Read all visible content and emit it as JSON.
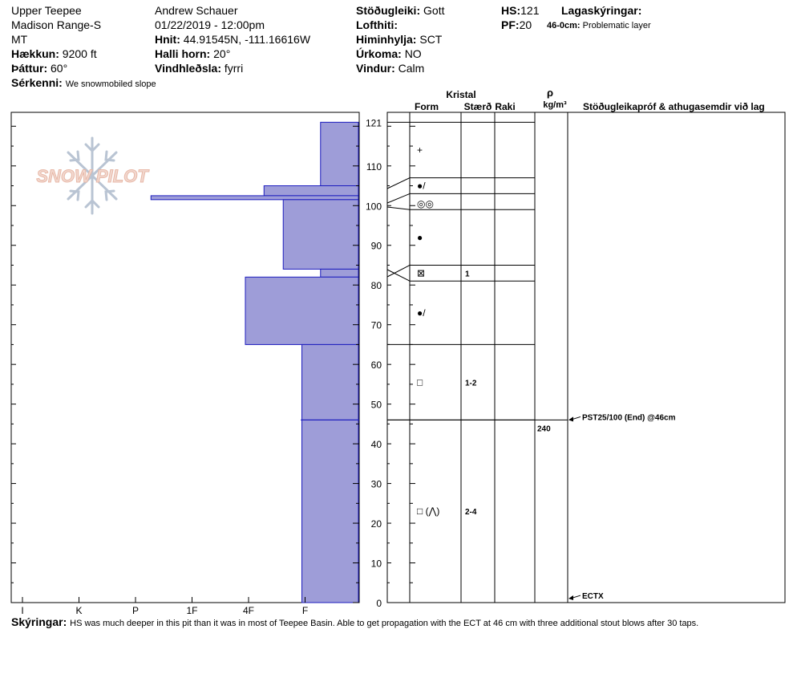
{
  "header": {
    "site_name": "Upper Teepee",
    "range": "Madison Range-S",
    "state": "MT",
    "elevation_label": "Hækkun:",
    "elevation_value": "9200 ft",
    "aspect_label": "Þáttur:",
    "aspect_value": "60°",
    "features_label": "Sérkenni:",
    "features_value": "We snowmobiled slope",
    "observer": "Andrew Schauer",
    "datetime": "01/22/2019 - 12:00pm",
    "coords_label": "Hnit:",
    "coords_value": "44.91545N, -111.16616W",
    "slope_label": "Halli horn:",
    "slope_value": "20°",
    "wind_loading_label": "Vindhleðsla:",
    "wind_loading_value": "fyrri",
    "stability_label": "Stöðugleiki:",
    "stability_value": "Gott",
    "air_temp_label": "Lofthiti:",
    "air_temp_value": "",
    "sky_label": "Himinhylja:",
    "sky_value": "SCT",
    "precip_label": "Úrkoma:",
    "precip_value": "NO",
    "wind_label": "Vindur:",
    "wind_value": "Calm",
    "hs_label": "HS:",
    "hs_value": "121",
    "pf_label": "PF:",
    "pf_value": "20",
    "layer_notes_label": "Lagaskýringar:",
    "layer_note_depth": "46-0cm:",
    "layer_note_text": "Problematic layer"
  },
  "columns": {
    "crystal_title": "Kristal",
    "form": "Form",
    "size": "Stærð",
    "moisture": "Raki",
    "density_symbol": "ρ",
    "density_unit": "kg/m³",
    "tests_title": "Stöðugleikapróf & athugasemdir við lag"
  },
  "footer": {
    "comments_label": "Skýringar:",
    "comments_text": "HS was much deeper in this pit than it was in most of Teepee Basin. Able to get propagation with the ECT at 46 cm with three additional stout blows after 30 taps."
  },
  "logo_text": "SNOW PILOT",
  "chart_data": {
    "type": "bar",
    "title": "",
    "y_axis": {
      "min": 0,
      "max": 121,
      "ticks": [
        0,
        10,
        20,
        30,
        40,
        50,
        60,
        70,
        80,
        90,
        100,
        110,
        121
      ]
    },
    "x_axis": {
      "categories": [
        "I",
        "K",
        "P",
        "1F",
        "4F",
        "F"
      ],
      "scale_values": [
        6,
        5,
        4,
        3,
        2,
        1
      ]
    },
    "bar_color": "#9e9dd8",
    "hardness_layers": [
      {
        "top": 121,
        "bottom": 105,
        "hardness_value": 0.67
      },
      {
        "top": 105,
        "bottom": 102.5,
        "hardness_value": 1.67
      },
      {
        "top": 102.5,
        "bottom": 101.5,
        "hardness_value": 3.67
      },
      {
        "top": 101.5,
        "bottom": 84,
        "hardness_value": 1.33
      },
      {
        "top": 84,
        "bottom": 82,
        "hardness_value": 0.67
      },
      {
        "top": 82,
        "bottom": 65,
        "hardness_value": 2.0
      },
      {
        "top": 65,
        "bottom": 46,
        "hardness_value": 1.0
      },
      {
        "top": 46,
        "bottom": 0,
        "hardness_value": 1.0
      }
    ],
    "layer_boundaries": [
      121,
      107,
      103,
      99,
      85,
      81,
      65,
      46
    ],
    "crystal_rows": [
      {
        "depth": 114,
        "form": "+",
        "size": ""
      },
      {
        "depth": 105,
        "form": "●/",
        "size": ""
      },
      {
        "depth": 100.5,
        "form": "◎◎",
        "size": ""
      },
      {
        "depth": 92,
        "form": "●",
        "size": ""
      },
      {
        "depth": 83,
        "form": "⊠",
        "size": "1"
      },
      {
        "depth": 73,
        "form": "●/",
        "size": ""
      },
      {
        "depth": 55.5,
        "form": "□",
        "size": "1-2"
      },
      {
        "depth": 23,
        "form": "□ (⋀)",
        "size": "2-4"
      }
    ],
    "density": [
      {
        "depth": 44,
        "value": "240"
      }
    ],
    "tests": [
      {
        "depth": 46,
        "text": "PST25/100 (End) @46cm"
      },
      {
        "depth": 1,
        "text": "ECTX"
      }
    ]
  }
}
